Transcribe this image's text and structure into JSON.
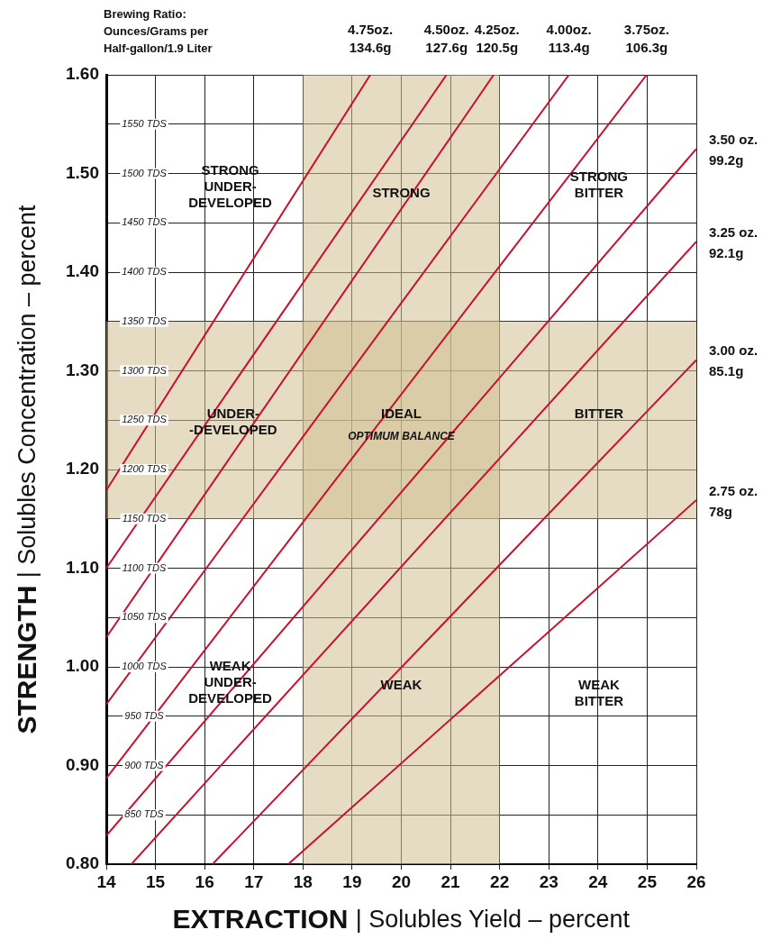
{
  "chart_data": {
    "type": "line",
    "legend_title": "Brewing Ratio:\nOunces/Grams per\nHalf-gallon/1.9 Liter",
    "xlabel": "EXTRACTION | Solubles Yield – percent",
    "ylabel": "STRENGTH | Solubles Concentration – percent",
    "xlim": [
      14,
      26
    ],
    "xticks": [
      14,
      15,
      16,
      17,
      18,
      19,
      20,
      21,
      22,
      23,
      24,
      25,
      26
    ],
    "ylim": [
      0.8,
      1.6
    ],
    "yticks": [
      {
        "value": 0.8,
        "label": "0.80"
      },
      {
        "value": 0.85,
        "label": null
      },
      {
        "value": 0.9,
        "label": "0.90"
      },
      {
        "value": 0.95,
        "label": null
      },
      {
        "value": 1.0,
        "label": "1.00"
      },
      {
        "value": 1.05,
        "label": null
      },
      {
        "value": 1.1,
        "label": "1.10"
      },
      {
        "value": 1.15,
        "label": null
      },
      {
        "value": 1.2,
        "label": "1.20"
      },
      {
        "value": 1.25,
        "label": null
      },
      {
        "value": 1.3,
        "label": "1.30"
      },
      {
        "value": 1.35,
        "label": null
      },
      {
        "value": 1.4,
        "label": "1.40"
      },
      {
        "value": 1.45,
        "label": null
      },
      {
        "value": 1.5,
        "label": "1.50"
      },
      {
        "value": 1.55,
        "label": null
      },
      {
        "value": 1.6,
        "label": "1.60"
      }
    ],
    "grid": true,
    "marker": "none",
    "line_style": "solid",
    "series": [
      {
        "name": "4.75oz.\n134.6g",
        "color": "#c8102e",
        "x": [
          14,
          19.37
        ],
        "values": [
          1.179,
          1.6
        ]
      },
      {
        "name": "4.50oz.\n127.6g",
        "color": "#c8102e",
        "x": [
          14,
          20.92
        ],
        "values": [
          1.1,
          1.6
        ]
      },
      {
        "name": "4.25oz.\n120.5g",
        "color": "#c8102e",
        "x": [
          14,
          21.88
        ],
        "values": [
          1.03,
          1.6
        ]
      },
      {
        "name": "4.00oz.\n113.4g",
        "color": "#c8102e",
        "x": [
          14,
          23.41
        ],
        "values": [
          0.962,
          1.6
        ]
      },
      {
        "name": "3.75oz.\n106.3g",
        "color": "#c8102e",
        "x": [
          14,
          24.99
        ],
        "values": [
          0.887,
          1.6
        ]
      },
      {
        "name": "3.50 oz.\n99.2g",
        "color": "#c8102e",
        "x": [
          14,
          26
        ],
        "values": [
          0.829,
          1.525
        ]
      },
      {
        "name": "3.25 oz.\n92.1g",
        "color": "#c8102e",
        "x": [
          14.51,
          26
        ],
        "values": [
          0.8,
          1.431
        ]
      },
      {
        "name": "3.00 oz.\n85.1g",
        "color": "#c8102e",
        "x": [
          16.16,
          26
        ],
        "values": [
          0.8,
          1.311
        ]
      },
      {
        "name": "2.75 oz.\n78g",
        "color": "#c8102e",
        "x": [
          17.7,
          26
        ],
        "values": [
          0.8,
          1.169
        ]
      }
    ],
    "bands": [
      {
        "axis": "x",
        "from": 18,
        "to": 22,
        "color": "#d2bf92"
      },
      {
        "axis": "y",
        "from": 1.15,
        "to": 1.35,
        "color": "#d2bf92"
      }
    ],
    "y2lim": [
      800,
      1600
    ],
    "y2ticks": [
      {
        "value": 850,
        "label": "850 TDS"
      },
      {
        "value": 900,
        "label": "900 TDS"
      },
      {
        "value": 950,
        "label": "950 TDS"
      },
      {
        "value": 1000,
        "label": "1000 TDS"
      },
      {
        "value": 1050,
        "label": "1050 TDS"
      },
      {
        "value": 1100,
        "label": "1100 TDS"
      },
      {
        "value": 1150,
        "label": "1150 TDS"
      },
      {
        "value": 1200,
        "label": "1200 TDS"
      },
      {
        "value": 1250,
        "label": "1250 TDS"
      },
      {
        "value": 1300,
        "label": "1300 TDS"
      },
      {
        "value": 1350,
        "label": "1350 TDS"
      },
      {
        "value": 1400,
        "label": "1400 TDS"
      },
      {
        "value": 1450,
        "label": "1450 TDS"
      },
      {
        "value": 1500,
        "label": "1500 TDS"
      },
      {
        "value": 1550,
        "label": "1550 TDS"
      }
    ],
    "annotations": [
      "STRONG\nUNDER-\nDEVELOPED",
      "STRONG",
      "STRONG\nBITTER",
      "UNDER-\n-DEVELOPED",
      "IDEAL",
      "OPTIMUM BALANCE",
      "BITTER",
      "WEAK\nUNDER-\nDEVELOPED",
      "WEAK",
      "WEAK\nBITTER"
    ]
  }
}
